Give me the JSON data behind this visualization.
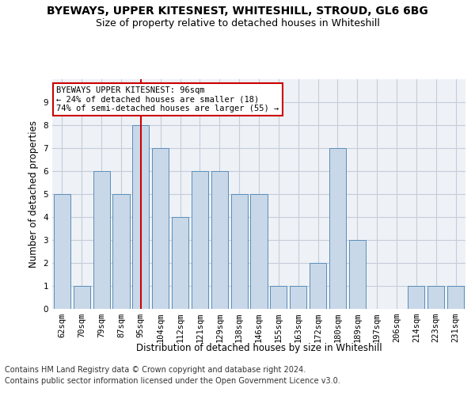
{
  "title": "BYEWAYS, UPPER KITESNEST, WHITESHILL, STROUD, GL6 6BG",
  "subtitle": "Size of property relative to detached houses in Whiteshill",
  "xlabel": "Distribution of detached houses by size in Whiteshill",
  "ylabel": "Number of detached properties",
  "categories": [
    "62sqm",
    "70sqm",
    "79sqm",
    "87sqm",
    "95sqm",
    "104sqm",
    "112sqm",
    "121sqm",
    "129sqm",
    "138sqm",
    "146sqm",
    "155sqm",
    "163sqm",
    "172sqm",
    "180sqm",
    "189sqm",
    "197sqm",
    "206sqm",
    "214sqm",
    "223sqm",
    "231sqm"
  ],
  "values": [
    5,
    1,
    6,
    5,
    8,
    7,
    4,
    6,
    6,
    5,
    5,
    1,
    1,
    2,
    7,
    3,
    0,
    0,
    1,
    1,
    1
  ],
  "bar_color": "#c8d8e8",
  "bar_edge_color": "#5b8db8",
  "highlight_index": 4,
  "highlight_line_color": "#cc0000",
  "annotation_line1": "BYEWAYS UPPER KITESNEST: 96sqm",
  "annotation_line2": "← 24% of detached houses are smaller (18)",
  "annotation_line3": "74% of semi-detached houses are larger (55) →",
  "annotation_box_color": "#ffffff",
  "annotation_box_edge": "#cc0000",
  "ylim": [
    0,
    10
  ],
  "yticks": [
    0,
    1,
    2,
    3,
    4,
    5,
    6,
    7,
    8,
    9
  ],
  "footnote1": "Contains HM Land Registry data © Crown copyright and database right 2024.",
  "footnote2": "Contains public sector information licensed under the Open Government Licence v3.0.",
  "bg_color": "#eef2f7",
  "grid_color": "#c5cdd8",
  "title_fontsize": 10,
  "subtitle_fontsize": 9,
  "axis_label_fontsize": 8.5,
  "tick_fontsize": 7.5,
  "annotation_fontsize": 7.5,
  "footnote_fontsize": 7
}
